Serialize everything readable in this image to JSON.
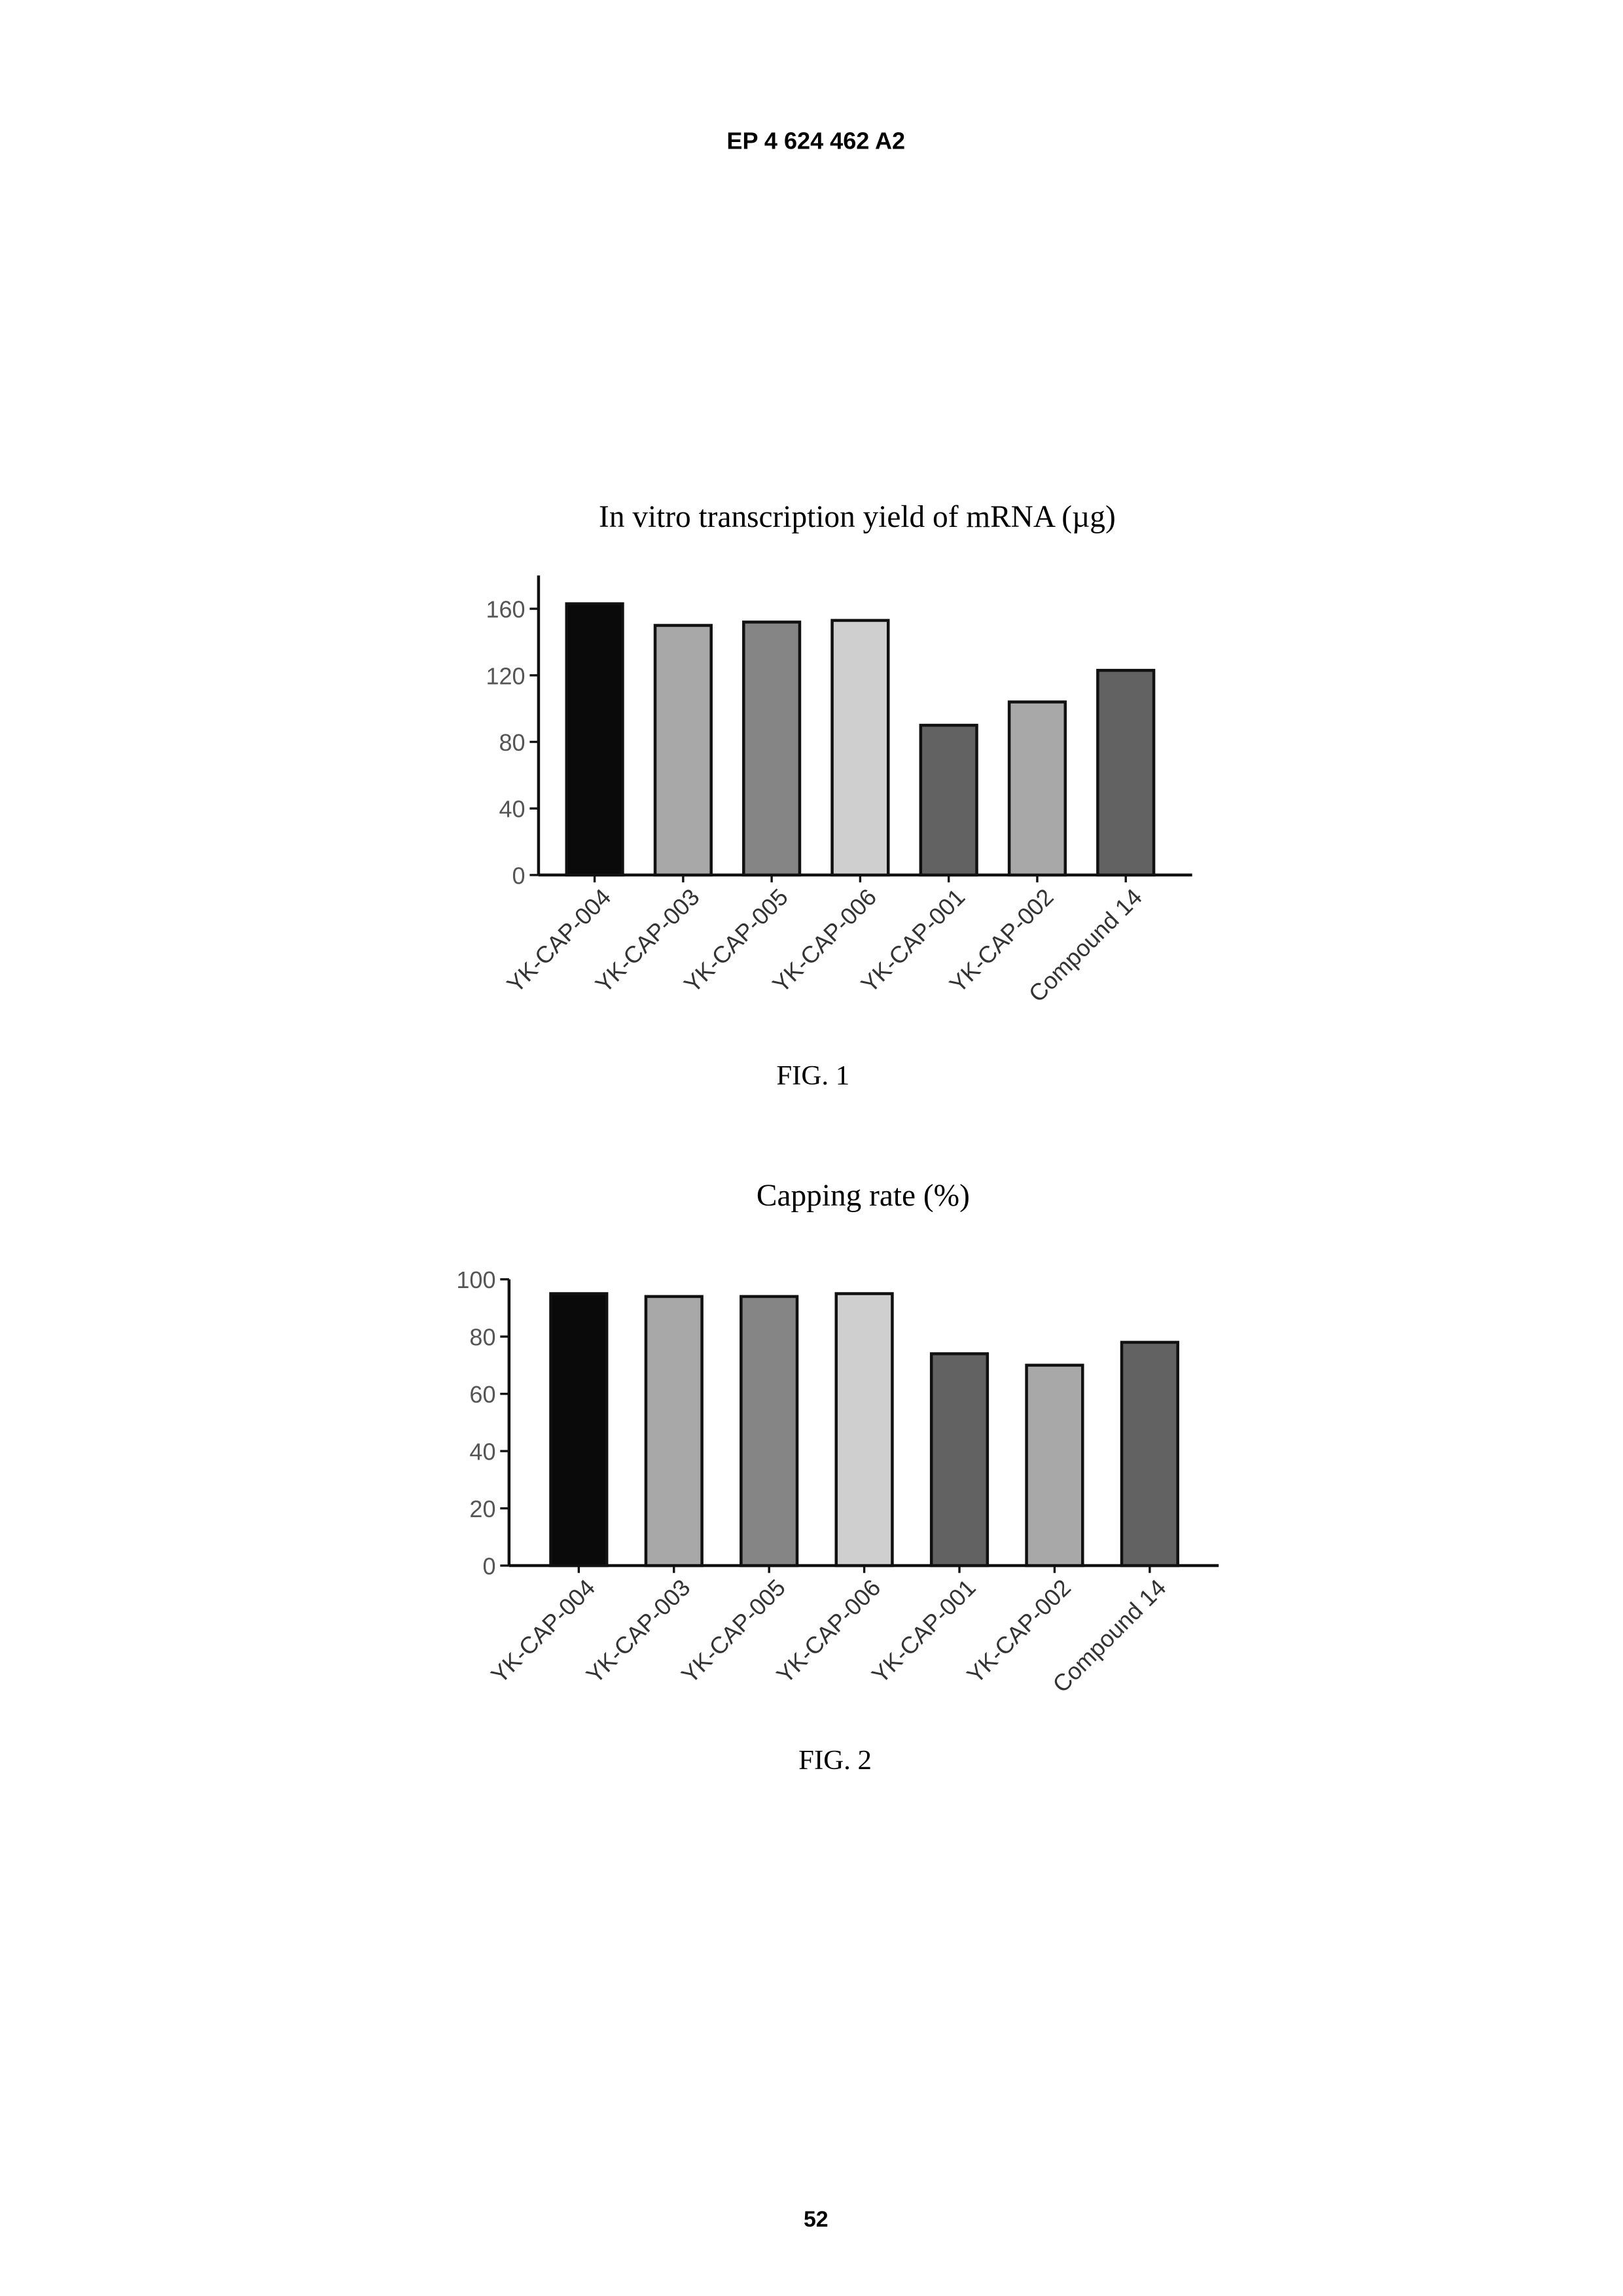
{
  "header": "EP 4 624 462 A2",
  "page_number": "52",
  "chart_data": [
    {
      "type": "bar",
      "title": "In vitro transcription yield of mRNA (µg)",
      "caption": "FIG. 1",
      "categories": [
        "YK-CAP-004",
        "YK-CAP-003",
        "YK-CAP-005",
        "YK-CAP-006",
        "YK-CAP-001",
        "YK-CAP-002",
        "Compound 14"
      ],
      "values": [
        163,
        150,
        152,
        153,
        90,
        104,
        123
      ],
      "colors": [
        "#0a0a0a",
        "#a8a8a8",
        "#858585",
        "#cfcfcf",
        "#626262",
        "#a8a8a8",
        "#626262"
      ],
      "ylim": [
        0,
        180
      ],
      "yticks": [
        0,
        40,
        80,
        120,
        160
      ]
    },
    {
      "type": "bar",
      "title": "Capping rate (%)",
      "caption": "FIG. 2",
      "categories": [
        "YK-CAP-004",
        "YK-CAP-003",
        "YK-CAP-005",
        "YK-CAP-006",
        "YK-CAP-001",
        "YK-CAP-002",
        "Compound 14"
      ],
      "values": [
        95,
        94,
        94,
        95,
        74,
        70,
        78
      ],
      "colors": [
        "#0a0a0a",
        "#a8a8a8",
        "#858585",
        "#cfcfcf",
        "#626262",
        "#a8a8a8",
        "#626262"
      ],
      "ylim": [
        0,
        100
      ],
      "yticks": [
        0,
        20,
        40,
        60,
        80,
        100
      ]
    }
  ]
}
